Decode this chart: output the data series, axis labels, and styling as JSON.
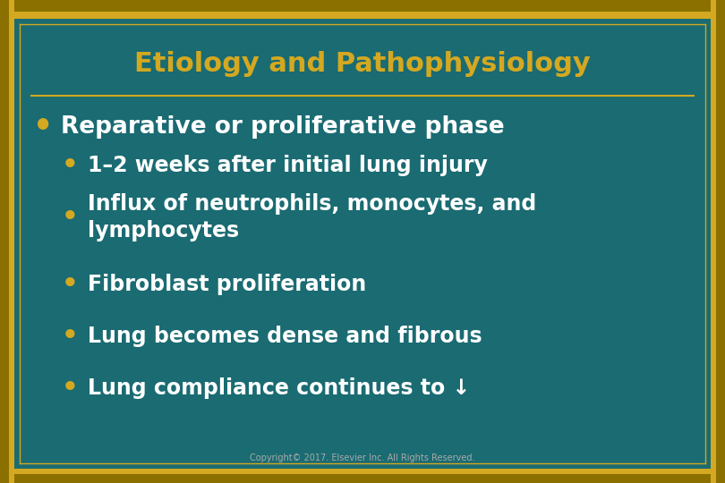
{
  "title": "Etiology and Pathophysiology",
  "title_color": "#D4A820",
  "title_fontsize": 22,
  "background_color": "#1a6b72",
  "border_color_outer": "#8B7000",
  "border_color_inner": "#D4A820",
  "separator_color": "#D4A820",
  "bullet_main_color": "#D4A820",
  "bullet_sub_color": "#D4A820",
  "text_color": "#FFFFFF",
  "copyright_text": "Copyright© 2017. Elsevier Inc. All Rights Reserved.",
  "copyright_color": "#AAAAAA",
  "copyright_fontsize": 7,
  "main_bullet": "Reparative or proliferative phase",
  "main_bullet_fontsize": 19,
  "sub_bullets": [
    "1–2 weeks after initial lung injury",
    "Influx of neutrophils, monocytes, and\nlymphocytes",
    "Fibroblast proliferation",
    "Lung becomes dense and fibrous",
    "Lung compliance continues to ↓"
  ],
  "sub_bullet_fontsize": 17
}
